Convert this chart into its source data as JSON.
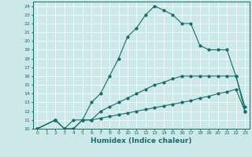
{
  "xlabel": "Humidex (Indice chaleur)",
  "bg_color": "#cce8e8",
  "line_color": "#1a6b6b",
  "grid_color": "#aacccc",
  "xlim": [
    -0.5,
    23.5
  ],
  "ylim": [
    10,
    24.5
  ],
  "xticks": [
    0,
    1,
    2,
    3,
    4,
    5,
    6,
    7,
    8,
    9,
    10,
    11,
    12,
    13,
    14,
    15,
    16,
    17,
    18,
    19,
    20,
    21,
    22,
    23
  ],
  "yticks": [
    10,
    11,
    12,
    13,
    14,
    15,
    16,
    17,
    18,
    19,
    20,
    21,
    22,
    23,
    24
  ],
  "line1_x": [
    0,
    2,
    3,
    4,
    5,
    6,
    7,
    8,
    9,
    10,
    11,
    12,
    13,
    14,
    15,
    16,
    17,
    18,
    19,
    20,
    21,
    22,
    23
  ],
  "line1_y": [
    10,
    11,
    10,
    11,
    11,
    13,
    14,
    16,
    18,
    20.5,
    21.5,
    23,
    24,
    23.5,
    23,
    22,
    22,
    19.5,
    19,
    19,
    19,
    16,
    12.5
  ],
  "line2_x": [
    0,
    2,
    3,
    4,
    5,
    6,
    7,
    8,
    9,
    10,
    11,
    12,
    13,
    14,
    15,
    16,
    17,
    18,
    19,
    20,
    21,
    22,
    23
  ],
  "line2_y": [
    10,
    11,
    10,
    10,
    11,
    11,
    12,
    12.5,
    13,
    13.5,
    14,
    14.5,
    15,
    15.3,
    15.7,
    16,
    16,
    16,
    16,
    16,
    16,
    16,
    12
  ],
  "line3_x": [
    0,
    2,
    3,
    4,
    5,
    6,
    7,
    8,
    9,
    10,
    11,
    12,
    13,
    14,
    15,
    16,
    17,
    18,
    19,
    20,
    21,
    22,
    23
  ],
  "line3_y": [
    10,
    11,
    10,
    10,
    11,
    11,
    11.2,
    11.4,
    11.6,
    11.8,
    12.0,
    12.2,
    12.4,
    12.6,
    12.8,
    13.0,
    13.2,
    13.5,
    13.7,
    14.0,
    14.2,
    14.5,
    12
  ]
}
